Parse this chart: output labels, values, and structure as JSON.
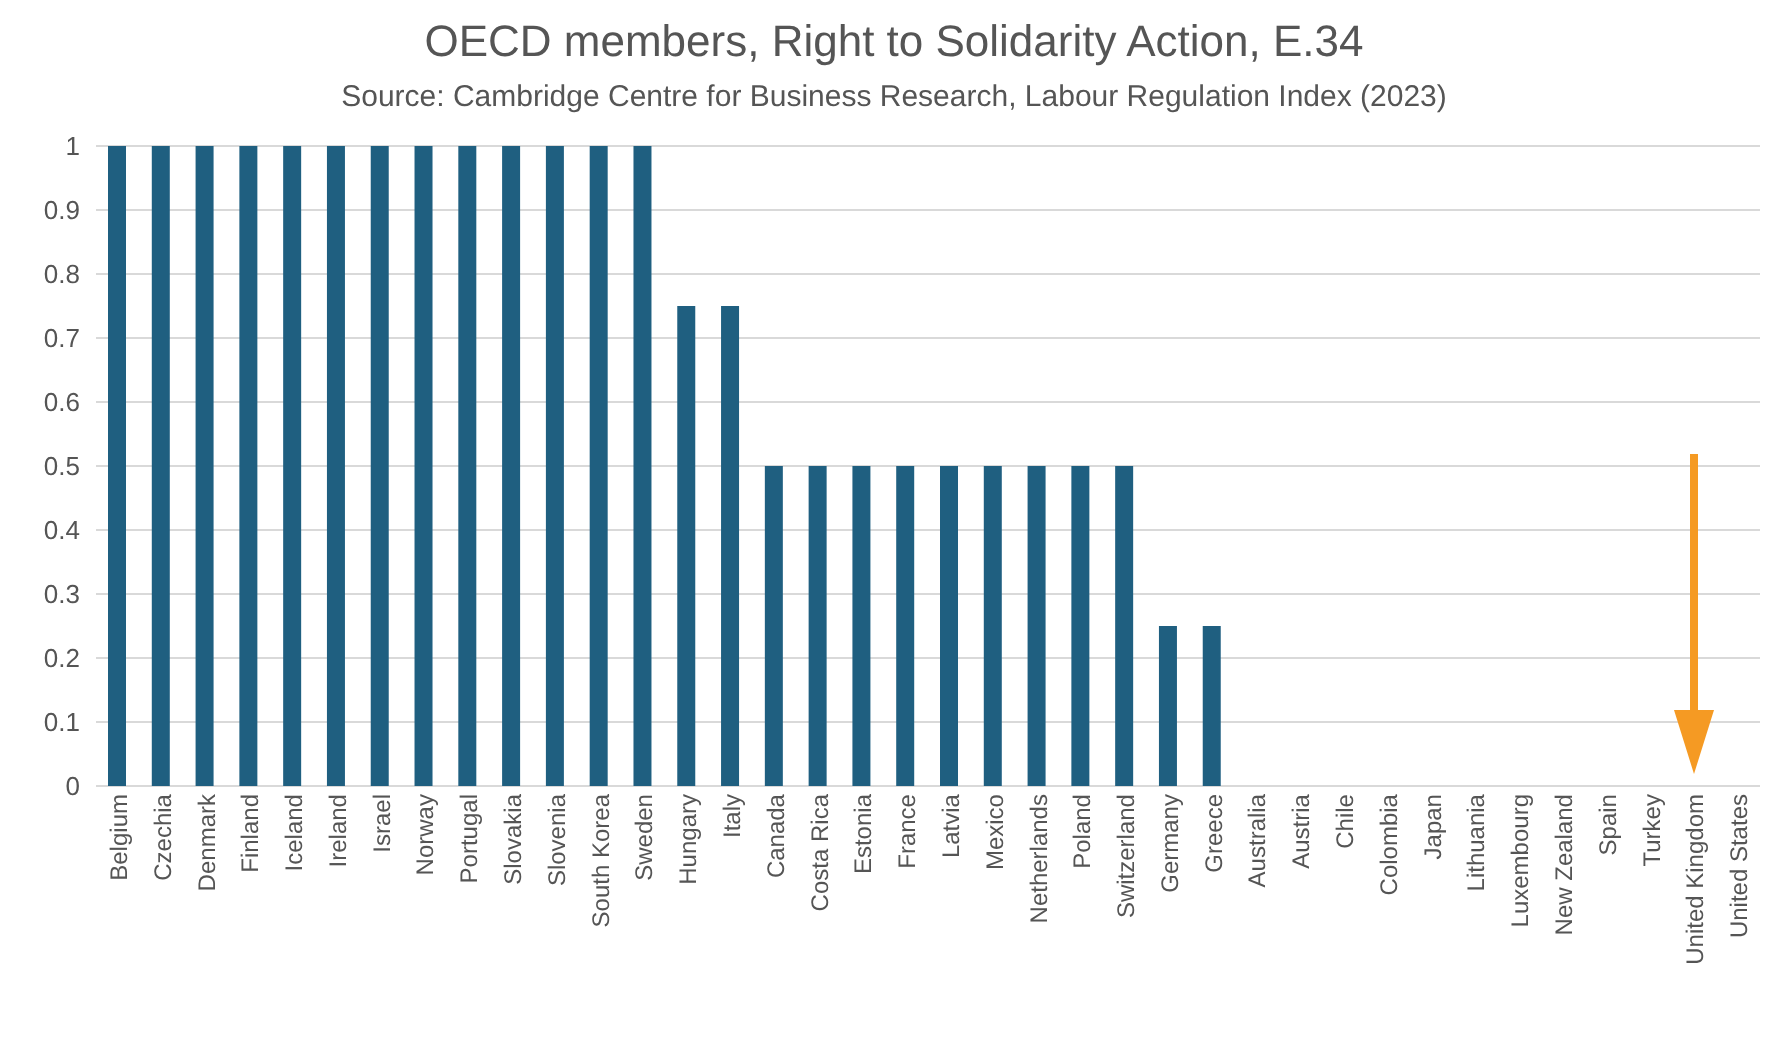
{
  "chart_data": {
    "type": "bar",
    "title": "OECD members, Right to Solidarity Action, E.34",
    "subtitle": "Source: Cambridge Centre for Business Research, Labour Regulation Index (2023)",
    "categories": [
      "Belgium",
      "Czechia",
      "Denmark",
      "Finland",
      "Iceland",
      "Ireland",
      "Israel",
      "Norway",
      "Portugal",
      "Slovakia",
      "Slovenia",
      "South Korea",
      "Sweden",
      "Hungary",
      "Italy",
      "Canada",
      "Costa Rica",
      "Estonia",
      "France",
      "Latvia",
      "Mexico",
      "Netherlands",
      "Poland",
      "Switzerland",
      "Germany",
      "Greece",
      "Australia",
      "Austria",
      "Chile",
      "Colombia",
      "Japan",
      "Lithuania",
      "Luxembourg",
      "New Zealand",
      "Spain",
      "Turkey",
      "United Kingdom",
      "United States"
    ],
    "values": [
      1,
      1,
      1,
      1,
      1,
      1,
      1,
      1,
      1,
      1,
      1,
      1,
      1,
      0.75,
      0.75,
      0.5,
      0.5,
      0.5,
      0.5,
      0.5,
      0.5,
      0.5,
      0.5,
      0.5,
      0.25,
      0.25,
      0,
      0,
      0,
      0,
      0,
      0,
      0,
      0,
      0,
      0,
      0,
      0
    ],
    "color": "#1f5f80",
    "ylim": [
      0,
      1
    ],
    "yticks": [
      0,
      0.1,
      0.2,
      0.3,
      0.4,
      0.5,
      0.6,
      0.7,
      0.8,
      0.9,
      1
    ],
    "grid": "y"
  }
}
